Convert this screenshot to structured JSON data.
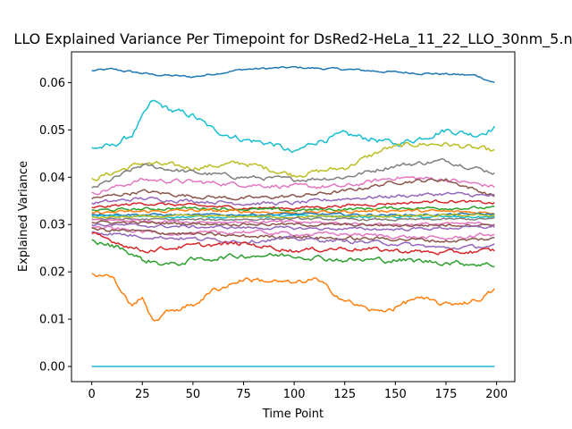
{
  "chart_data": {
    "type": "line",
    "title": "LLO Explained Variance Per Timepoint for DsRed2-HeLa_11_22_LLO_30nm_5.n",
    "xlabel": "Time Point",
    "ylabel": "Explained Variance",
    "xlim": [
      -10,
      209
    ],
    "ylim": [
      -0.0032,
      0.0665
    ],
    "xticks": [
      0,
      25,
      50,
      75,
      100,
      125,
      150,
      175,
      200
    ],
    "yticks": [
      0.0,
      0.01,
      0.02,
      0.03,
      0.04,
      0.05,
      0.06
    ],
    "ytick_labels": [
      "0.00",
      "0.01",
      "0.02",
      "0.03",
      "0.04",
      "0.05",
      "0.06"
    ],
    "grid": false,
    "legend": "none",
    "n_points": 200,
    "series": [
      {
        "color": "#1f77b4",
        "knots": [
          [
            0,
            0.0625
          ],
          [
            10,
            0.0628
          ],
          [
            30,
            0.0617
          ],
          [
            50,
            0.0612
          ],
          [
            75,
            0.0628
          ],
          [
            100,
            0.0632
          ],
          [
            125,
            0.0628
          ],
          [
            150,
            0.0622
          ],
          [
            175,
            0.0618
          ],
          [
            190,
            0.0615
          ],
          [
            199,
            0.06
          ]
        ],
        "noise": 0.0003
      },
      {
        "color": "#17becf",
        "knots": [
          [
            0,
            0.0462
          ],
          [
            10,
            0.0465
          ],
          [
            20,
            0.049
          ],
          [
            30,
            0.056
          ],
          [
            40,
            0.054
          ],
          [
            50,
            0.053
          ],
          [
            60,
            0.05
          ],
          [
            75,
            0.048
          ],
          [
            90,
            0.047
          ],
          [
            100,
            0.045
          ],
          [
            110,
            0.0475
          ],
          [
            125,
            0.049
          ],
          [
            140,
            0.048
          ],
          [
            150,
            0.047
          ],
          [
            160,
            0.048
          ],
          [
            175,
            0.05
          ],
          [
            190,
            0.049
          ],
          [
            199,
            0.0505
          ]
        ],
        "noise": 0.0008
      },
      {
        "color": "#bcbd22",
        "knots": [
          [
            0,
            0.0395
          ],
          [
            25,
            0.043
          ],
          [
            50,
            0.042
          ],
          [
            75,
            0.043
          ],
          [
            100,
            0.0405
          ],
          [
            125,
            0.042
          ],
          [
            145,
            0.046
          ],
          [
            160,
            0.047
          ],
          [
            175,
            0.047
          ],
          [
            199,
            0.0455
          ]
        ],
        "noise": 0.0007
      },
      {
        "color": "#7f7f7f",
        "knots": [
          [
            0,
            0.0375
          ],
          [
            25,
            0.0425
          ],
          [
            50,
            0.041
          ],
          [
            75,
            0.04
          ],
          [
            100,
            0.0395
          ],
          [
            125,
            0.04
          ],
          [
            150,
            0.0425
          ],
          [
            175,
            0.0435
          ],
          [
            199,
            0.041
          ]
        ],
        "noise": 0.0006
      },
      {
        "color": "#e377c2",
        "knots": [
          [
            0,
            0.0365
          ],
          [
            25,
            0.0395
          ],
          [
            50,
            0.039
          ],
          [
            75,
            0.0385
          ],
          [
            100,
            0.038
          ],
          [
            125,
            0.038
          ],
          [
            150,
            0.04
          ],
          [
            175,
            0.0395
          ],
          [
            199,
            0.038
          ]
        ],
        "noise": 0.0006
      },
      {
        "color": "#8c564b",
        "knots": [
          [
            0,
            0.0355
          ],
          [
            25,
            0.037
          ],
          [
            50,
            0.036
          ],
          [
            75,
            0.0355
          ],
          [
            100,
            0.036
          ],
          [
            125,
            0.037
          ],
          [
            150,
            0.039
          ],
          [
            175,
            0.0395
          ],
          [
            199,
            0.036
          ]
        ],
        "noise": 0.0005
      },
      {
        "color": "#9467bd",
        "knots": [
          [
            0,
            0.0345
          ],
          [
            25,
            0.0355
          ],
          [
            50,
            0.035
          ],
          [
            75,
            0.0345
          ],
          [
            100,
            0.0345
          ],
          [
            125,
            0.0355
          ],
          [
            150,
            0.036
          ],
          [
            175,
            0.0365
          ],
          [
            199,
            0.036
          ]
        ],
        "noise": 0.0005
      },
      {
        "color": "#d62728",
        "knots": [
          [
            0,
            0.0335
          ],
          [
            25,
            0.0345
          ],
          [
            50,
            0.034
          ],
          [
            75,
            0.0335
          ],
          [
            100,
            0.0335
          ],
          [
            125,
            0.034
          ],
          [
            150,
            0.0345
          ],
          [
            175,
            0.035
          ],
          [
            199,
            0.0345
          ]
        ],
        "noise": 0.0004
      },
      {
        "color": "#2ca02c",
        "knots": [
          [
            0,
            0.033
          ],
          [
            50,
            0.0335
          ],
          [
            100,
            0.033
          ],
          [
            150,
            0.0335
          ],
          [
            199,
            0.0335
          ]
        ],
        "noise": 0.0004
      },
      {
        "color": "#ff7f0e",
        "knots": [
          [
            0,
            0.0325
          ],
          [
            50,
            0.033
          ],
          [
            100,
            0.0325
          ],
          [
            150,
            0.033
          ],
          [
            199,
            0.0325
          ]
        ],
        "noise": 0.0004
      },
      {
        "color": "#1f77b4",
        "knots": [
          [
            0,
            0.0322
          ],
          [
            50,
            0.032
          ],
          [
            100,
            0.0322
          ],
          [
            150,
            0.032
          ],
          [
            199,
            0.0322
          ]
        ],
        "noise": 0.0003
      },
      {
        "color": "#17becf",
        "knots": [
          [
            0,
            0.0318
          ],
          [
            50,
            0.0316
          ],
          [
            100,
            0.0318
          ],
          [
            150,
            0.0316
          ],
          [
            199,
            0.0316
          ]
        ],
        "noise": 0.0003
      },
      {
        "color": "#bcbd22",
        "knots": [
          [
            0,
            0.0315
          ],
          [
            50,
            0.0318
          ],
          [
            100,
            0.0316
          ],
          [
            150,
            0.0318
          ],
          [
            199,
            0.032
          ]
        ],
        "noise": 0.0003
      },
      {
        "color": "#7f7f7f",
        "knots": [
          [
            0,
            0.0312
          ],
          [
            50,
            0.031
          ],
          [
            100,
            0.0312
          ],
          [
            150,
            0.031
          ],
          [
            199,
            0.0312
          ]
        ],
        "noise": 0.0003
      },
      {
        "color": "#e377c2",
        "knots": [
          [
            0,
            0.031
          ],
          [
            50,
            0.0306
          ],
          [
            100,
            0.0305
          ],
          [
            150,
            0.03
          ],
          [
            199,
            0.0302
          ]
        ],
        "noise": 0.0004
      },
      {
        "color": "#8c564b",
        "knots": [
          [
            0,
            0.0305
          ],
          [
            50,
            0.0302
          ],
          [
            100,
            0.03
          ],
          [
            150,
            0.0298
          ],
          [
            199,
            0.03
          ]
        ],
        "noise": 0.0004
      },
      {
        "color": "#9467bd",
        "knots": [
          [
            0,
            0.03
          ],
          [
            50,
            0.0295
          ],
          [
            100,
            0.0292
          ],
          [
            150,
            0.029
          ],
          [
            199,
            0.0295
          ]
        ],
        "noise": 0.0004
      },
      {
        "color": "#e377c2",
        "knots": [
          [
            0,
            0.0295
          ],
          [
            25,
            0.0285
          ],
          [
            50,
            0.028
          ],
          [
            75,
            0.0285
          ],
          [
            100,
            0.028
          ],
          [
            125,
            0.028
          ],
          [
            150,
            0.0275
          ],
          [
            175,
            0.027
          ],
          [
            199,
            0.028
          ]
        ],
        "noise": 0.0005
      },
      {
        "color": "#8c564b",
        "knots": [
          [
            0,
            0.029
          ],
          [
            25,
            0.0285
          ],
          [
            50,
            0.028
          ],
          [
            75,
            0.0275
          ],
          [
            100,
            0.0275
          ],
          [
            125,
            0.027
          ],
          [
            150,
            0.027
          ],
          [
            175,
            0.0265
          ],
          [
            199,
            0.027
          ]
        ],
        "noise": 0.0005
      },
      {
        "color": "#9467bd",
        "knots": [
          [
            0,
            0.0285
          ],
          [
            25,
            0.0275
          ],
          [
            50,
            0.027
          ],
          [
            75,
            0.0265
          ],
          [
            100,
            0.027
          ],
          [
            125,
            0.0265
          ],
          [
            150,
            0.026
          ],
          [
            175,
            0.025
          ],
          [
            199,
            0.0255
          ]
        ],
        "noise": 0.0005
      },
      {
        "color": "#d62728",
        "knots": [
          [
            0,
            0.028
          ],
          [
            25,
            0.0245
          ],
          [
            50,
            0.0255
          ],
          [
            75,
            0.026
          ],
          [
            100,
            0.0245
          ],
          [
            125,
            0.025
          ],
          [
            150,
            0.0245
          ],
          [
            175,
            0.024
          ],
          [
            199,
            0.0245
          ]
        ],
        "noise": 0.0006
      },
      {
        "color": "#2ca02c",
        "knots": [
          [
            0,
            0.0265
          ],
          [
            15,
            0.025
          ],
          [
            25,
            0.0225
          ],
          [
            40,
            0.0215
          ],
          [
            50,
            0.0225
          ],
          [
            75,
            0.0235
          ],
          [
            100,
            0.0235
          ],
          [
            125,
            0.0225
          ],
          [
            150,
            0.0225
          ],
          [
            175,
            0.022
          ],
          [
            199,
            0.0215
          ]
        ],
        "noise": 0.0007
      },
      {
        "color": "#ff7f0e",
        "knots": [
          [
            0,
            0.0195
          ],
          [
            10,
            0.019
          ],
          [
            20,
            0.0125
          ],
          [
            25,
            0.015
          ],
          [
            30,
            0.0095
          ],
          [
            40,
            0.012
          ],
          [
            50,
            0.013
          ],
          [
            60,
            0.016
          ],
          [
            75,
            0.0185
          ],
          [
            90,
            0.018
          ],
          [
            100,
            0.0175
          ],
          [
            110,
            0.0185
          ],
          [
            125,
            0.014
          ],
          [
            140,
            0.0115
          ],
          [
            150,
            0.0125
          ],
          [
            160,
            0.0145
          ],
          [
            175,
            0.013
          ],
          [
            190,
            0.014
          ],
          [
            199,
            0.016
          ]
        ],
        "noise": 0.0007
      },
      {
        "color": "#17becf",
        "knots": [
          [
            0,
            0.0
          ],
          [
            199,
            0.0
          ]
        ],
        "noise": 0
      }
    ]
  }
}
